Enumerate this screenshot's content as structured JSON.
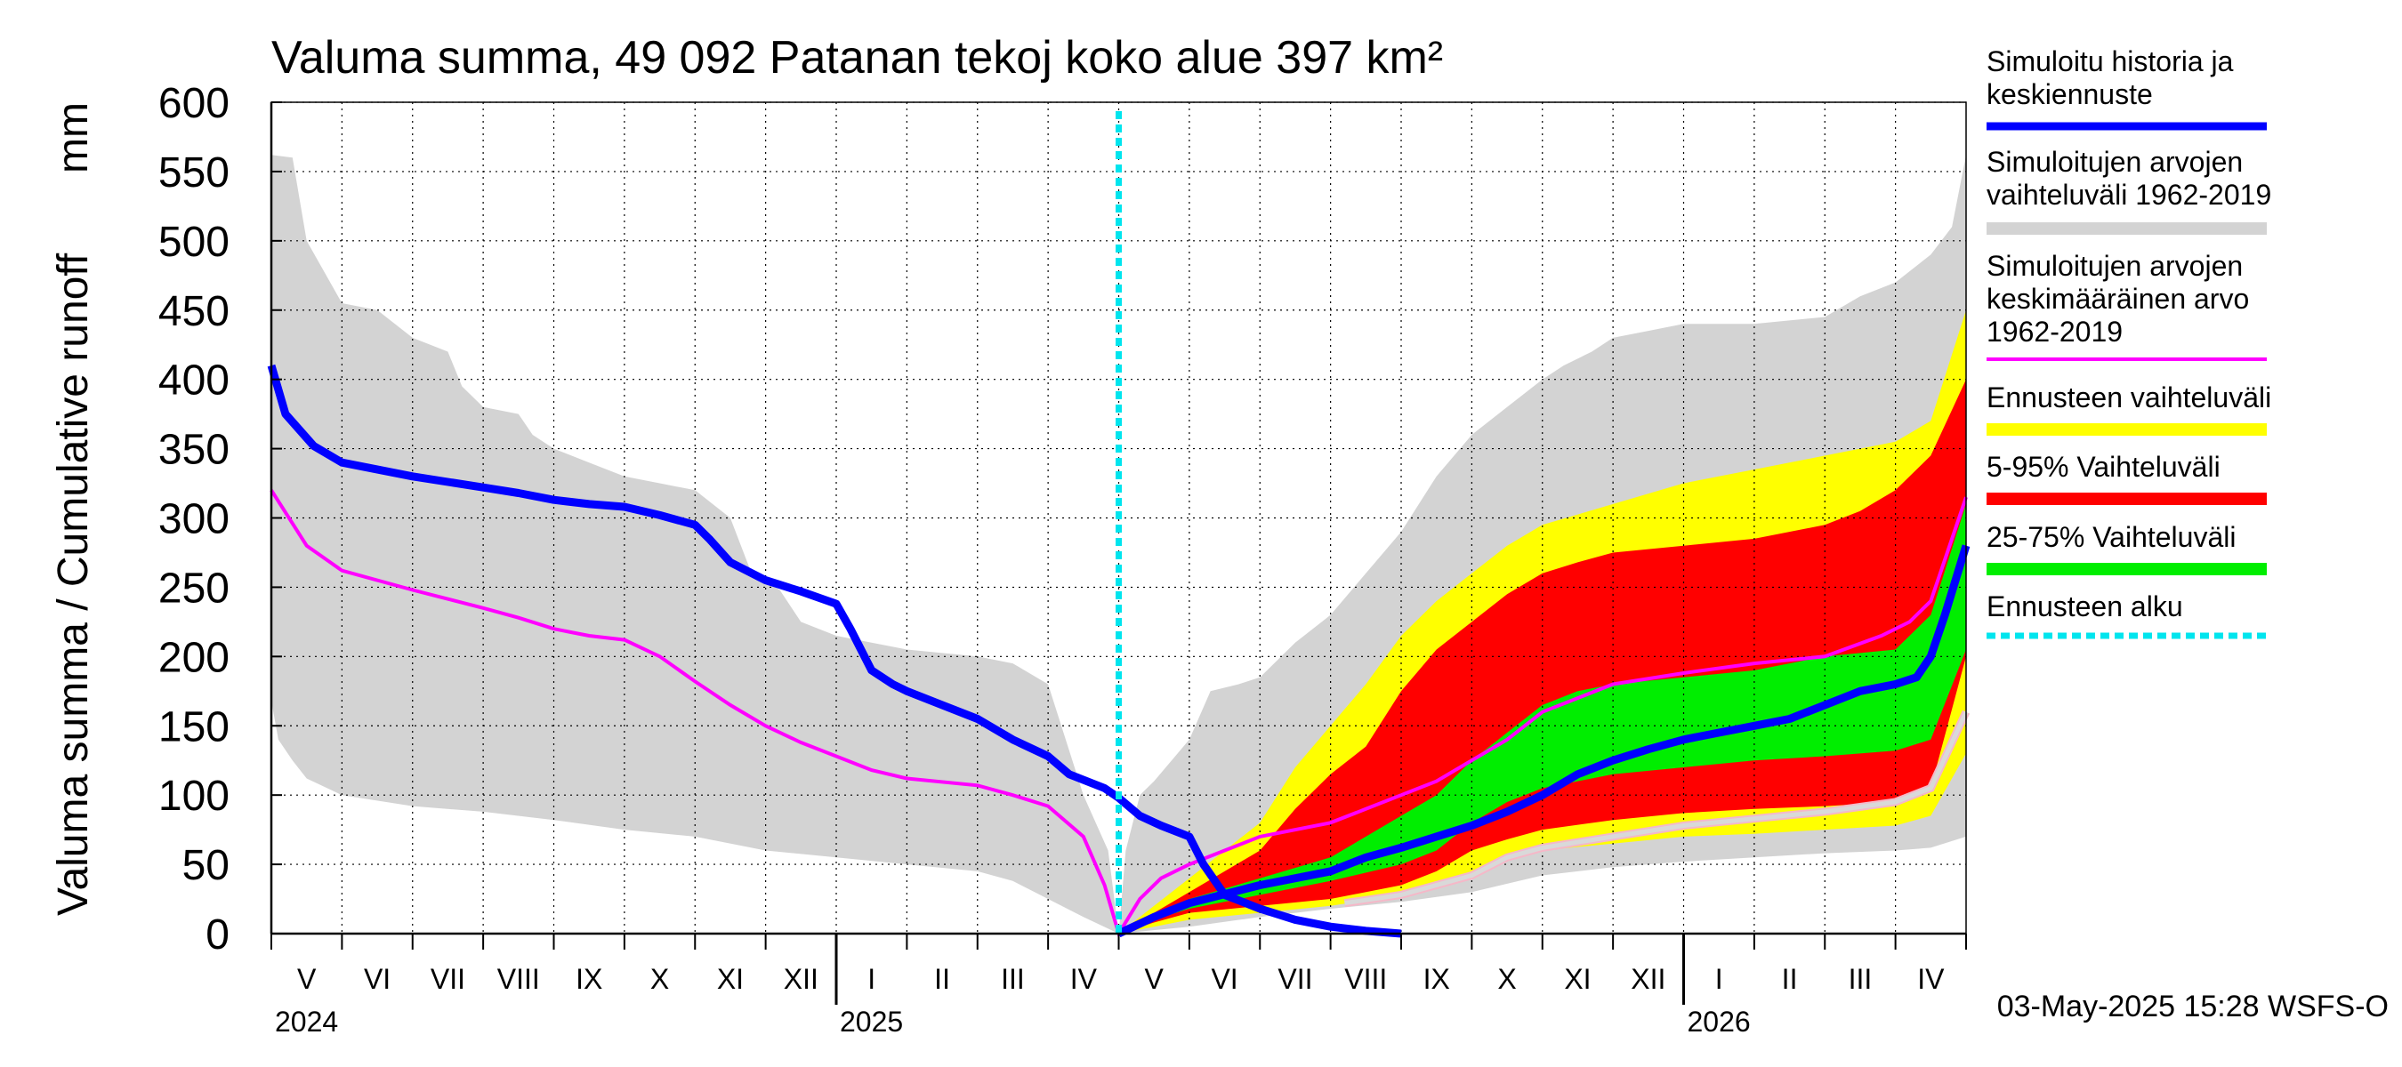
{
  "chart_data": {
    "type": "area",
    "title": "Valuma summa, 49 092 Patanan tekoj koko alue 397 km²",
    "ylabel_left": "Valuma summa / Cumulative runoff",
    "ylabel_unit": "mm",
    "ylim": [
      0,
      600
    ],
    "yticks": [
      0,
      50,
      100,
      150,
      200,
      250,
      300,
      350,
      400,
      450,
      500,
      550,
      600
    ],
    "xlim": [
      0,
      24
    ],
    "month_labels": [
      "V",
      "VI",
      "VII",
      "VIII",
      "IX",
      "X",
      "XI",
      "XII",
      "I",
      "II",
      "III",
      "IV",
      "V",
      "VI",
      "VII",
      "VIII",
      "IX",
      "X",
      "XI",
      "XII",
      "I",
      "II",
      "III",
      "IV"
    ],
    "year_labels": [
      {
        "label": "2024",
        "month_index": 0
      },
      {
        "label": "2025",
        "month_index": 8
      },
      {
        "label": "2026",
        "month_index": 20
      }
    ],
    "forecast_start": 12,
    "timestamp": "03-May-2025 15:28 WSFS-O",
    "legend": [
      {
        "key": "history",
        "label": "Simuloitu historia ja keskiennuste",
        "lines": [
          "Simuloitu historia ja",
          "keskiennuste"
        ],
        "color": "#0000ff",
        "style": "line"
      },
      {
        "key": "range",
        "label": "Simuloitujen arvojen vaihteluväli 1962-2019",
        "lines": [
          "Simuloitujen arvojen",
          "vaihteluväli 1962-2019"
        ],
        "color": "#d3d3d3",
        "style": "band"
      },
      {
        "key": "mean",
        "label": "Simuloitujen arvojen keskimääräinen arvo 1962-2019",
        "lines": [
          "Simuloitujen arvojen",
          "keskimääräinen arvo",
          "   1962-2019"
        ],
        "color": "#ff00ff",
        "style": "line"
      },
      {
        "key": "fc_range",
        "label": "Ennusteen vaihteluväli",
        "lines": [
          "Ennusteen vaihteluväli"
        ],
        "color": "#ffff00",
        "style": "band"
      },
      {
        "key": "p5_95",
        "label": "5-95% Vaihteluväli",
        "lines": [
          "5-95% Vaihteluväli"
        ],
        "color": "#ff0000",
        "style": "band"
      },
      {
        "key": "p25_75",
        "label": "25-75% Vaihteluväli",
        "lines": [
          "25-75% Vaihteluväli"
        ],
        "color": "#00ee00",
        "style": "band"
      },
      {
        "key": "fc_start",
        "label": "Ennusteen alku",
        "lines": [
          "Ennusteen alku"
        ],
        "color": "#00e5ee",
        "style": "dashed"
      }
    ],
    "series": {
      "range_upper": [
        [
          0,
          562
        ],
        [
          0.3,
          560
        ],
        [
          0.5,
          500
        ],
        [
          1,
          455
        ],
        [
          1.5,
          450
        ],
        [
          2,
          430
        ],
        [
          2.5,
          420
        ],
        [
          2.7,
          395
        ],
        [
          3,
          380
        ],
        [
          3.5,
          375
        ],
        [
          3.7,
          360
        ],
        [
          4,
          350
        ],
        [
          4.5,
          340
        ],
        [
          5,
          330
        ],
        [
          5.5,
          325
        ],
        [
          6,
          320
        ],
        [
          6.5,
          300
        ],
        [
          6.8,
          260
        ],
        [
          7.2,
          248
        ],
        [
          7.5,
          225
        ],
        [
          8,
          215
        ],
        [
          8.5,
          210
        ],
        [
          9,
          205
        ],
        [
          10,
          200
        ],
        [
          10.5,
          195
        ],
        [
          11,
          180
        ],
        [
          11.5,
          100
        ],
        [
          11.85,
          60
        ],
        [
          12,
          0
        ],
        [
          12.1,
          60
        ],
        [
          12.3,
          100
        ],
        [
          12.5,
          110
        ],
        [
          13,
          140
        ],
        [
          13.3,
          175
        ],
        [
          13.7,
          180
        ],
        [
          14,
          185
        ],
        [
          14.5,
          210
        ],
        [
          15,
          230
        ],
        [
          15.5,
          260
        ],
        [
          16,
          290
        ],
        [
          16.5,
          330
        ],
        [
          17,
          360
        ],
        [
          17.5,
          380
        ],
        [
          18,
          400
        ],
        [
          18.3,
          410
        ],
        [
          18.7,
          420
        ],
        [
          19,
          430
        ],
        [
          19.5,
          435
        ],
        [
          20,
          440
        ],
        [
          21,
          440
        ],
        [
          22,
          445
        ],
        [
          22.5,
          460
        ],
        [
          23,
          470
        ],
        [
          23.5,
          490
        ],
        [
          23.8,
          510
        ],
        [
          24,
          562
        ]
      ],
      "range_lower": [
        [
          0,
          168
        ],
        [
          0.1,
          140
        ],
        [
          0.3,
          125
        ],
        [
          0.5,
          112
        ],
        [
          1,
          100
        ],
        [
          2,
          92
        ],
        [
          3,
          88
        ],
        [
          4,
          82
        ],
        [
          5,
          75
        ],
        [
          6,
          70
        ],
        [
          7,
          60
        ],
        [
          8,
          55
        ],
        [
          9,
          50
        ],
        [
          10,
          45
        ],
        [
          10.5,
          38
        ],
        [
          11,
          25
        ],
        [
          11.5,
          12
        ],
        [
          12,
          0
        ],
        [
          13,
          5
        ],
        [
          14,
          12
        ],
        [
          15,
          18
        ],
        [
          16,
          23
        ],
        [
          17,
          30
        ],
        [
          18,
          42
        ],
        [
          19,
          48
        ],
        [
          20,
          52
        ],
        [
          21,
          55
        ],
        [
          22,
          58
        ],
        [
          23,
          60
        ],
        [
          23.5,
          62
        ],
        [
          24,
          70
        ]
      ],
      "mean": [
        [
          0,
          320
        ],
        [
          0.5,
          280
        ],
        [
          1,
          262
        ],
        [
          2,
          248
        ],
        [
          3,
          235
        ],
        [
          3.5,
          228
        ],
        [
          4,
          220
        ],
        [
          4.5,
          215
        ],
        [
          5,
          212
        ],
        [
          5.5,
          200
        ],
        [
          6,
          182
        ],
        [
          6.5,
          165
        ],
        [
          7,
          150
        ],
        [
          7.5,
          138
        ],
        [
          8,
          128
        ],
        [
          8.5,
          118
        ],
        [
          9,
          112
        ],
        [
          10,
          107
        ],
        [
          10.5,
          100
        ],
        [
          11,
          92
        ],
        [
          11.5,
          70
        ],
        [
          11.8,
          35
        ],
        [
          12,
          0
        ],
        [
          12.3,
          25
        ],
        [
          12.6,
          40
        ],
        [
          13,
          50
        ],
        [
          13.5,
          60
        ],
        [
          14,
          70
        ],
        [
          15,
          80
        ],
        [
          15.5,
          90
        ],
        [
          16,
          100
        ],
        [
          16.5,
          110
        ],
        [
          17,
          125
        ],
        [
          17.5,
          140
        ],
        [
          18,
          160
        ],
        [
          18.5,
          170
        ],
        [
          19,
          180
        ],
        [
          20,
          188
        ],
        [
          21,
          195
        ],
        [
          22,
          200
        ],
        [
          22.8,
          215
        ],
        [
          23.2,
          225
        ],
        [
          23.5,
          240
        ],
        [
          23.7,
          270
        ],
        [
          24,
          315
        ]
      ],
      "history": [
        [
          0,
          410
        ],
        [
          0.2,
          375
        ],
        [
          0.6,
          352
        ],
        [
          1,
          340
        ],
        [
          2,
          330
        ],
        [
          3,
          322
        ],
        [
          3.5,
          318
        ],
        [
          4,
          313
        ],
        [
          4.5,
          310
        ],
        [
          5,
          308
        ],
        [
          5.5,
          302
        ],
        [
          6,
          295
        ],
        [
          6.2,
          285
        ],
        [
          6.5,
          268
        ],
        [
          7,
          255
        ],
        [
          7.5,
          247
        ],
        [
          8,
          238
        ],
        [
          8.2,
          220
        ],
        [
          8.5,
          190
        ],
        [
          8.8,
          180
        ],
        [
          9,
          175
        ],
        [
          9.5,
          165
        ],
        [
          10,
          155
        ],
        [
          10.5,
          140
        ],
        [
          11,
          128
        ],
        [
          11.3,
          115
        ],
        [
          11.8,
          105
        ],
        [
          12,
          98
        ],
        [
          12.3,
          85
        ],
        [
          12.6,
          78
        ],
        [
          13,
          70
        ],
        [
          13.2,
          50
        ],
        [
          13.5,
          28
        ],
        [
          14,
          18
        ],
        [
          14.5,
          10
        ],
        [
          15,
          5
        ],
        [
          15.5,
          2
        ],
        [
          16,
          0
        ]
      ],
      "forecast_median": [
        [
          12,
          0
        ],
        [
          12.5,
          12
        ],
        [
          13,
          22
        ],
        [
          14,
          35
        ],
        [
          15,
          45
        ],
        [
          15.5,
          55
        ],
        [
          16,
          62
        ],
        [
          16.5,
          70
        ],
        [
          17,
          78
        ],
        [
          17.5,
          88
        ],
        [
          18,
          100
        ],
        [
          18.5,
          115
        ],
        [
          19,
          125
        ],
        [
          19.5,
          133
        ],
        [
          20,
          140
        ],
        [
          20.5,
          145
        ],
        [
          21,
          150
        ],
        [
          21.5,
          155
        ],
        [
          22,
          165
        ],
        [
          22.5,
          175
        ],
        [
          23,
          180
        ],
        [
          23.3,
          185
        ],
        [
          23.5,
          200
        ],
        [
          23.7,
          230
        ],
        [
          24,
          280
        ]
      ],
      "fc_upper": [
        [
          12,
          0
        ],
        [
          12.5,
          20
        ],
        [
          13,
          40
        ],
        [
          13.5,
          60
        ],
        [
          14,
          80
        ],
        [
          14.5,
          120
        ],
        [
          15,
          150
        ],
        [
          15.5,
          180
        ],
        [
          16,
          215
        ],
        [
          16.5,
          240
        ],
        [
          17,
          260
        ],
        [
          17.5,
          280
        ],
        [
          18,
          295
        ],
        [
          19,
          310
        ],
        [
          20,
          325
        ],
        [
          21,
          335
        ],
        [
          22,
          345
        ],
        [
          22.5,
          350
        ],
        [
          23,
          355
        ],
        [
          23.5,
          370
        ],
        [
          24,
          450
        ]
      ],
      "fc_lower": [
        [
          12,
          0
        ],
        [
          12.5,
          5
        ],
        [
          13,
          10
        ],
        [
          14,
          15
        ],
        [
          15,
          20
        ],
        [
          16,
          28
        ],
        [
          17,
          45
        ],
        [
          17.5,
          55
        ],
        [
          18,
          60
        ],
        [
          19,
          65
        ],
        [
          20,
          70
        ],
        [
          21,
          72
        ],
        [
          22,
          75
        ],
        [
          23,
          78
        ],
        [
          23.5,
          85
        ],
        [
          24,
          130
        ]
      ],
      "p95": [
        [
          12,
          0
        ],
        [
          12.5,
          15
        ],
        [
          13,
          30
        ],
        [
          13.5,
          45
        ],
        [
          14,
          60
        ],
        [
          14.5,
          90
        ],
        [
          15,
          115
        ],
        [
          15.5,
          135
        ],
        [
          16,
          175
        ],
        [
          16.5,
          205
        ],
        [
          17,
          225
        ],
        [
          17.5,
          245
        ],
        [
          18,
          260
        ],
        [
          18.5,
          268
        ],
        [
          19,
          275
        ],
        [
          20,
          280
        ],
        [
          21,
          285
        ],
        [
          22,
          295
        ],
        [
          22.5,
          305
        ],
        [
          23,
          320
        ],
        [
          23.5,
          345
        ],
        [
          24,
          400
        ]
      ],
      "p5": [
        [
          12,
          0
        ],
        [
          12.5,
          8
        ],
        [
          13,
          15
        ],
        [
          14,
          20
        ],
        [
          15,
          25
        ],
        [
          16,
          35
        ],
        [
          16.5,
          45
        ],
        [
          17,
          60
        ],
        [
          17.5,
          68
        ],
        [
          18,
          75
        ],
        [
          19,
          82
        ],
        [
          20,
          87
        ],
        [
          21,
          90
        ],
        [
          22,
          92
        ],
        [
          23,
          95
        ],
        [
          23.5,
          105
        ],
        [
          24,
          200
        ]
      ],
      "p75": [
        [
          12,
          0
        ],
        [
          12.5,
          12
        ],
        [
          13,
          25
        ],
        [
          14,
          40
        ],
        [
          15,
          55
        ],
        [
          15.5,
          70
        ],
        [
          16,
          85
        ],
        [
          16.5,
          100
        ],
        [
          17,
          125
        ],
        [
          17.5,
          145
        ],
        [
          18,
          165
        ],
        [
          18.5,
          175
        ],
        [
          19,
          180
        ],
        [
          20,
          185
        ],
        [
          21,
          190
        ],
        [
          22,
          200
        ],
        [
          23,
          205
        ],
        [
          23.5,
          230
        ],
        [
          24,
          310
        ]
      ],
      "p25": [
        [
          12,
          0
        ],
        [
          12.5,
          10
        ],
        [
          13,
          18
        ],
        [
          14,
          28
        ],
        [
          15,
          38
        ],
        [
          16,
          50
        ],
        [
          16.5,
          60
        ],
        [
          17,
          80
        ],
        [
          17.5,
          95
        ],
        [
          18,
          105
        ],
        [
          19,
          115
        ],
        [
          20,
          120
        ],
        [
          21,
          125
        ],
        [
          22,
          128
        ],
        [
          23,
          132
        ],
        [
          23.5,
          140
        ],
        [
          24,
          205
        ]
      ],
      "forecast_sim_low": [
        [
          15.2,
          22
        ],
        [
          16,
          28
        ],
        [
          17,
          42
        ],
        [
          17.5,
          55
        ],
        [
          18,
          62
        ],
        [
          19,
          70
        ],
        [
          20,
          78
        ],
        [
          21,
          83
        ],
        [
          22,
          88
        ],
        [
          23,
          95
        ],
        [
          23.5,
          105
        ],
        [
          24,
          160
        ]
      ]
    }
  }
}
